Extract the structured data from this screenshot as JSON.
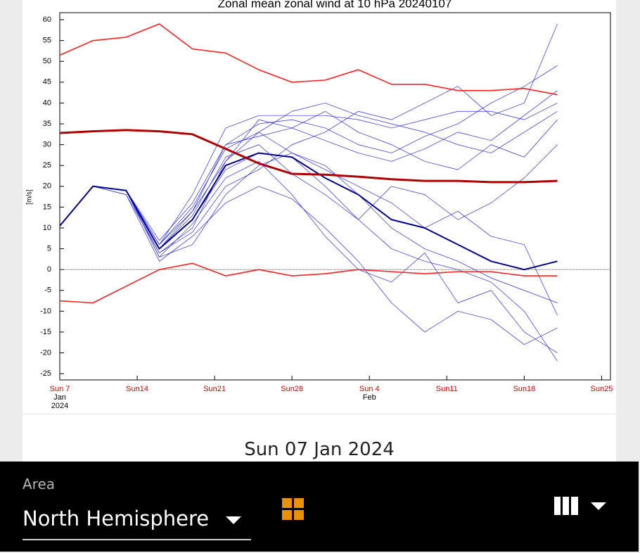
{
  "chart_data": {
    "type": "line",
    "title": "Zonal mean zonal wind at 10 hPa 20240107",
    "y_label": "[m/s]",
    "x": [
      0,
      3,
      6,
      9,
      12,
      15,
      18,
      21,
      24,
      27,
      30,
      33,
      36,
      39,
      42,
      45
    ],
    "xlim": [
      0,
      49.8
    ],
    "xticks": [
      {
        "value": 0,
        "label": "Sun 7"
      },
      {
        "value": 7,
        "label": "Sun14"
      },
      {
        "value": 14,
        "label": "Sun21"
      },
      {
        "value": 21,
        "label": "Sun28"
      },
      {
        "value": 28,
        "label": "Sun 4"
      },
      {
        "value": 35,
        "label": "Sun11"
      },
      {
        "value": 42,
        "label": "Sun18"
      },
      {
        "value": 49,
        "label": "Sun25"
      }
    ],
    "x_month_labels": [
      {
        "value": 0,
        "label": "Jan"
      },
      {
        "value": 28,
        "label": "Feb"
      }
    ],
    "x_year_labels": [
      {
        "value": 0,
        "label": "2024"
      }
    ],
    "ylim": [
      -26.5,
      61.7
    ],
    "yticks": [
      -25,
      -20,
      -15,
      -10,
      -5,
      0,
      5,
      10,
      15,
      20,
      25,
      30,
      35,
      40,
      45,
      50,
      55,
      60
    ],
    "hline": 0,
    "series": [
      {
        "color": "#2a2aff",
        "width": 0.7,
        "values": [
          10.5,
          20,
          19,
          5,
          14,
          30,
          35,
          36,
          34,
          30,
          28,
          32,
          35,
          40,
          44,
          49
        ]
      },
      {
        "color": "#2a2aff",
        "width": 0.7,
        "values": [
          10.5,
          20,
          18,
          4,
          10,
          26,
          33,
          38,
          40,
          37,
          35,
          33,
          30,
          28,
          33,
          38
        ]
      },
      {
        "color": "#2a2aff",
        "width": 0.7,
        "values": [
          10.5,
          20,
          19,
          6,
          18,
          34,
          37,
          37,
          37,
          36,
          34,
          36,
          38,
          38,
          36,
          40
        ]
      },
      {
        "color": "#2a2aff",
        "width": 0.7,
        "values": [
          10.5,
          20,
          19,
          3,
          6,
          18,
          25,
          28,
          25,
          18,
          10,
          5,
          2,
          -2,
          -5,
          -8
        ]
      },
      {
        "color": "#2a2aff",
        "width": 0.7,
        "values": [
          10.5,
          20,
          19,
          5,
          12,
          24,
          28,
          27,
          20,
          12,
          5,
          2,
          0,
          -3,
          -10,
          -22
        ]
      },
      {
        "color": "#2a2aff",
        "width": 0.7,
        "values": [
          10.5,
          20,
          18,
          2,
          8,
          16,
          20,
          17,
          10,
          2,
          -8,
          -15,
          -10,
          -12,
          -18,
          -14
        ]
      },
      {
        "color": "#2a2aff",
        "width": 0.7,
        "values": [
          10.5,
          20,
          19,
          7,
          16,
          30,
          32,
          34,
          31,
          28,
          26,
          29,
          33,
          31,
          37,
          43
        ]
      },
      {
        "color": "#2a2aff",
        "width": 0.7,
        "values": [
          10.5,
          20,
          19,
          6,
          15,
          29,
          33,
          28,
          24,
          20,
          16,
          10,
          14,
          8,
          6,
          -11
        ]
      },
      {
        "color": "#2a2aff",
        "width": 0.7,
        "values": [
          10.5,
          20,
          19,
          4,
          9,
          20,
          24,
          30,
          33,
          38,
          36,
          40,
          44,
          37,
          40,
          59
        ]
      },
      {
        "color": "#2a2aff",
        "width": 0.7,
        "values": [
          10.5,
          20,
          19,
          5,
          13,
          27,
          30,
          23,
          18,
          12,
          20,
          18,
          12,
          16,
          22,
          30
        ]
      },
      {
        "color": "#2a2aff",
        "width": 0.7,
        "values": [
          10.5,
          20,
          19,
          3,
          11,
          22,
          26,
          18,
          8,
          0,
          -3,
          4,
          -8,
          -5,
          -15,
          -20
        ]
      },
      {
        "color": "#2a2aff",
        "width": 0.7,
        "values": [
          10.5,
          20,
          19,
          6,
          14,
          26,
          36,
          34,
          38,
          33,
          30,
          26,
          24,
          30,
          27,
          36
        ]
      },
      {
        "color": "#00008b",
        "width": 2,
        "values": [
          10.5,
          20,
          19,
          5,
          12,
          25,
          28,
          27,
          22,
          18,
          12,
          10,
          6,
          2,
          0,
          2
        ]
      },
      {
        "color": "#ff2020",
        "width": 1.6,
        "values": [
          51.5,
          55,
          55.8,
          59,
          53,
          52,
          48,
          45,
          45.5,
          48,
          44.5,
          44.5,
          43,
          43,
          43.5,
          42
        ]
      },
      {
        "color": "#ff2020",
        "width": 1.6,
        "values": [
          -7.5,
          -8,
          -4,
          0,
          1.5,
          -1.5,
          0,
          -1.5,
          -1,
          0,
          -0.5,
          -1,
          -0.5,
          -0.5,
          -1.5,
          -1.5
        ]
      },
      {
        "color": "#b00000",
        "width": 3,
        "values": [
          32.8,
          33.2,
          33.5,
          33.2,
          32.5,
          29,
          25.5,
          23,
          22.8,
          22.3,
          21.7,
          21.3,
          21.3,
          21,
          21,
          21.3
        ]
      }
    ]
  },
  "ui": {
    "date_label": "Sun 07 Jan 2024",
    "area_label": "Area",
    "area_value": "North Hemisphere"
  }
}
